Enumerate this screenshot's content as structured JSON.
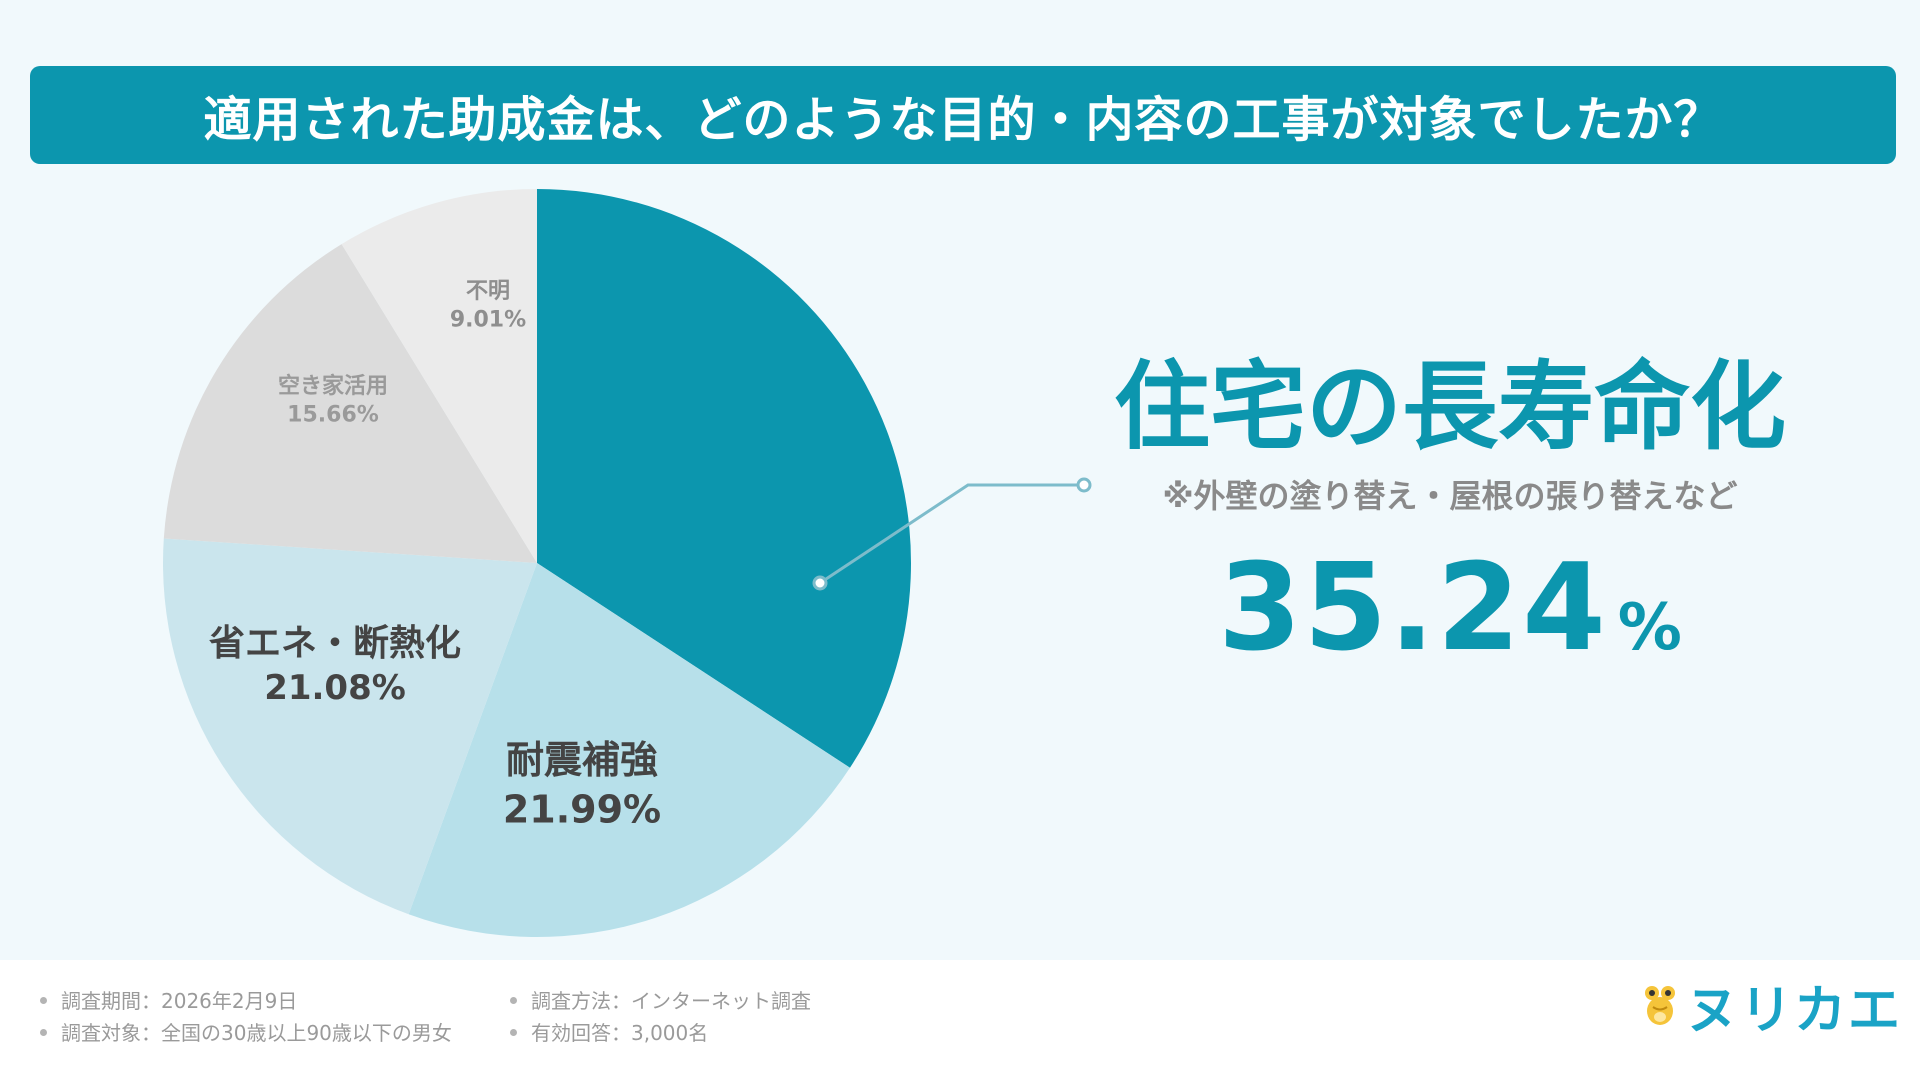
{
  "title": "適用された助成金は、どのような目的・内容の工事が対象でしたか？",
  "chart_data": {
    "type": "pie",
    "slices": [
      {
        "label": "住宅の長寿命化",
        "value": 35.24,
        "value_text": "35.24%",
        "color": "#0c96ae"
      },
      {
        "label": "耐震補強",
        "value": 21.99,
        "value_text": "21.99%",
        "color": "#b7e0ea"
      },
      {
        "label": "省エネ・断熱化",
        "value": 21.08,
        "value_text": "21.08%",
        "color": "#cae5ed"
      },
      {
        "label": "空き家活用",
        "value": 15.66,
        "value_text": "15.66%",
        "color": "#dcdcdc"
      },
      {
        "label": "不明",
        "value": 9.01,
        "value_text": "9.01%",
        "color": "#ebebeb"
      }
    ]
  },
  "highlight": {
    "name": "住宅の長寿命化",
    "note": "※外壁の塗り替え・屋根の張り替えなど",
    "value": "35.24",
    "unit": "%"
  },
  "footer": {
    "period": "調査期間：2026年2月9日",
    "method": "調査方法：インターネット調査",
    "target": "調査対象：全国の30歳以上90歳以下の男女",
    "responses": "有効回答：3,000名"
  },
  "logo": {
    "text": "ヌリカエ",
    "icon": "frog-mascot-icon",
    "color": "#1aa3c6"
  }
}
